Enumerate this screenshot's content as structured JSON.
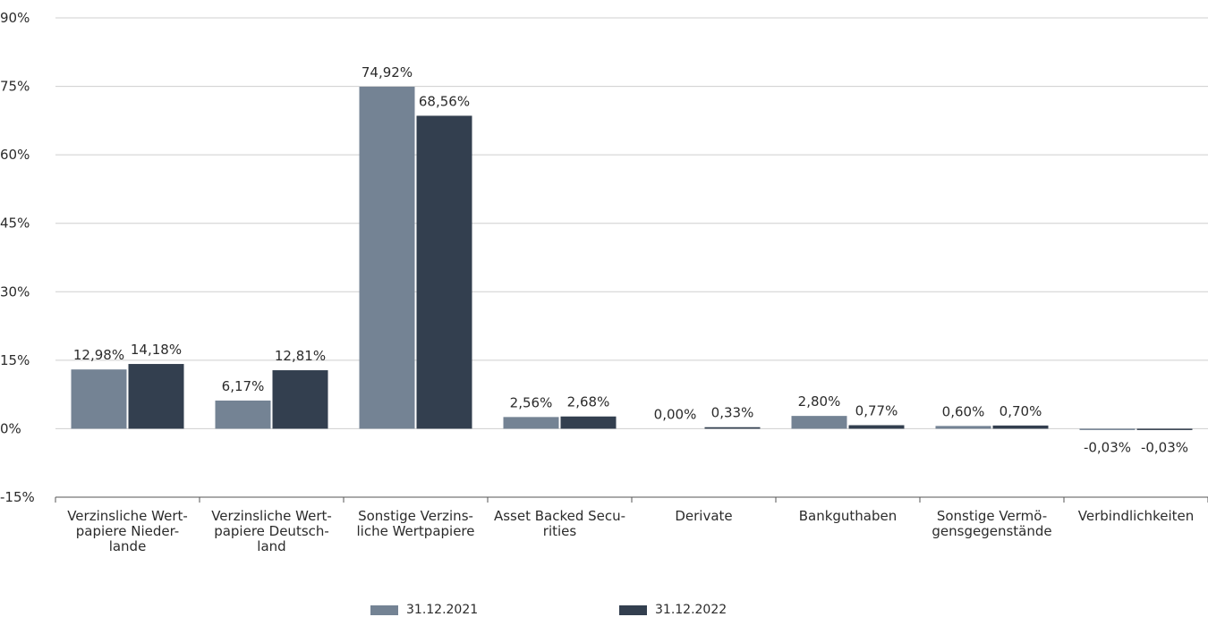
{
  "chart_data": {
    "type": "bar",
    "categories": [
      [
        "Verzinsliche Wert-",
        "papiere Nieder-",
        "lande"
      ],
      [
        "Verzinsliche Wert-",
        "papiere Deutsch-",
        "land"
      ],
      [
        "Sonstige Verzins-",
        "liche Wertpapiere"
      ],
      [
        "Asset Backed Secu-",
        "rities"
      ],
      [
        "Derivate"
      ],
      [
        "Bankguthaben"
      ],
      [
        "Sonstige Vermö-",
        "gensgegenstände"
      ],
      [
        "Verbindlichkeiten"
      ]
    ],
    "series": [
      {
        "name": "31.12.2021",
        "color": "#748394",
        "values": [
          12.98,
          6.17,
          74.92,
          2.56,
          0.0,
          2.8,
          0.6,
          -0.03
        ],
        "labels": [
          "12,98%",
          "6,17%",
          "74,92%",
          "2,56%",
          "0,00%",
          "2,80%",
          "0,60%",
          "-0,03%"
        ]
      },
      {
        "name": "31.12.2022",
        "color": "#333f4f",
        "values": [
          14.18,
          12.81,
          68.56,
          2.68,
          0.33,
          0.77,
          0.7,
          -0.03
        ],
        "labels": [
          "14,18%",
          "12,81%",
          "68,56%",
          "2,68%",
          "0,33%",
          "0,77%",
          "0,70%",
          "-0,03%"
        ]
      }
    ],
    "ylim": [
      -15,
      90
    ],
    "yticks": [
      90,
      75,
      60,
      45,
      30,
      15,
      0,
      -15
    ],
    "ytick_labels": [
      "90%",
      "75%",
      "60%",
      "45%",
      "30%",
      "15%",
      "0%",
      "-15%"
    ],
    "grid": true,
    "legend_position": "bottom-center"
  }
}
